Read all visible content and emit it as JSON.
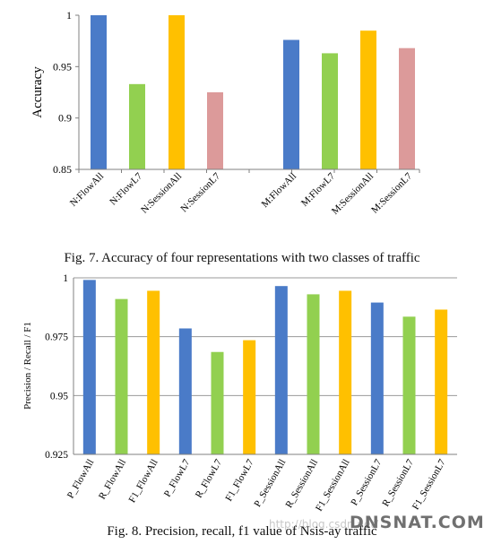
{
  "chart_data": [
    {
      "type": "bar",
      "ylabel": "Accuracy",
      "xlabel": "",
      "ylim": [
        0.85,
        1.0
      ],
      "yticks": [
        "0.85",
        "0.9",
        "0.95",
        "1"
      ],
      "grid": false,
      "legend": "none",
      "categories": [
        "N:FlowAll",
        "N:FlowL7",
        "N:SessionAll",
        "N:SessionL7",
        "M:FlowAll",
        "M:FlowL7",
        "M:SessionAll",
        "M:SessionL7"
      ],
      "values": [
        1.0,
        0.933,
        1.0,
        0.925,
        0.976,
        0.963,
        0.985,
        0.968
      ],
      "colors": [
        "#4a7bc8",
        "#92d050",
        "#ffc000",
        "#dc9a9a",
        "#4a7bc8",
        "#92d050",
        "#ffc000",
        "#dc9a9a"
      ],
      "caption": "Fig. 7. Accuracy of four representations with two classes of traffic"
    },
    {
      "type": "bar",
      "ylabel": "Precision / Recall / F1",
      "xlabel": "",
      "ylim": [
        0.925,
        1.0
      ],
      "yticks": [
        "0.925",
        "0.95",
        "0.975",
        "1"
      ],
      "grid": true,
      "legend": "none",
      "categories": [
        "P_FlowAll",
        "R_FlowAll",
        "F1_FlowAll",
        "P_FlowL7",
        "R_FlowL7",
        "F1_FlowL7",
        "P_SessionAll",
        "R_SessionAll",
        "F1_SessionAll",
        "P_SessionL7",
        "R_SessionL7",
        "F1_SessionL7"
      ],
      "values": [
        0.9991,
        0.991,
        0.9945,
        0.9785,
        0.9685,
        0.9735,
        0.9965,
        0.993,
        0.9945,
        0.9895,
        0.9835,
        0.9865
      ],
      "colors": [
        "#4a7bc8",
        "#92d050",
        "#ffc000",
        "#4a7bc8",
        "#92d050",
        "#ffc000",
        "#4a7bc8",
        "#92d050",
        "#ffc000",
        "#4a7bc8",
        "#92d050",
        "#ffc000"
      ],
      "caption": "Fig. 8. Precision, recall, f1 value of Nsis-ay traffic"
    }
  ],
  "watermark": "DNSNAT.COM"
}
